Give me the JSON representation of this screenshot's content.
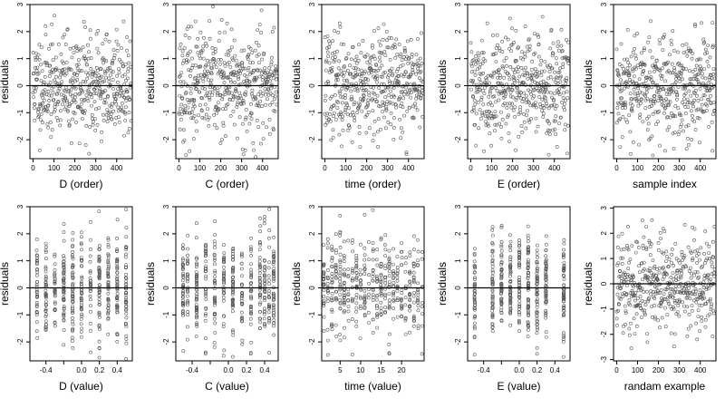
{
  "figure": {
    "rows": 2,
    "cols": 5,
    "point_color": "#555555",
    "zero_line_color": "#000000"
  },
  "chart_data": [
    {
      "type": "scatter",
      "xlabel": "D (order)",
      "ylabel": "residuals",
      "xlim": [
        -15,
        475
      ],
      "ylim": [
        -2.7,
        3.0
      ],
      "xticks": [
        0,
        100,
        200,
        300,
        400
      ],
      "xtick_labels": [
        "0",
        "100",
        "200",
        "300",
        "400"
      ],
      "yticks": [
        -2,
        -1,
        0,
        1,
        2,
        3
      ],
      "ytick_labels": [
        "-2",
        "-1",
        "0",
        "1",
        "2",
        "3"
      ],
      "hline": 0,
      "x_kind": "order",
      "seed": 11
    },
    {
      "type": "scatter",
      "xlabel": "C (order)",
      "ylabel": "residuals",
      "xlim": [
        -15,
        475
      ],
      "ylim": [
        -2.7,
        3.0
      ],
      "xticks": [
        0,
        100,
        200,
        300,
        400
      ],
      "xtick_labels": [
        "0",
        "100",
        "200",
        "300",
        "400"
      ],
      "yticks": [
        -2,
        -1,
        0,
        1,
        2,
        3
      ],
      "ytick_labels": [
        "-2",
        "-1",
        "0",
        "1",
        "2",
        "3"
      ],
      "hline": 0,
      "x_kind": "order",
      "seed": 23
    },
    {
      "type": "scatter",
      "xlabel": "time (order)",
      "ylabel": "residuals",
      "xlim": [
        -15,
        475
      ],
      "ylim": [
        -2.7,
        3.0
      ],
      "xticks": [
        0,
        100,
        200,
        300,
        400
      ],
      "xtick_labels": [
        "0",
        "100",
        "200",
        "300",
        "400"
      ],
      "yticks": [
        -2,
        -1,
        0,
        1,
        2,
        3
      ],
      "ytick_labels": [
        "-2",
        "-1",
        "0",
        "1",
        "2",
        "3"
      ],
      "hline": 0,
      "x_kind": "order",
      "seed": 37
    },
    {
      "type": "scatter",
      "xlabel": "E (order)",
      "ylabel": "residuals",
      "xlim": [
        -15,
        475
      ],
      "ylim": [
        -2.7,
        3.0
      ],
      "xticks": [
        0,
        100,
        200,
        300,
        400
      ],
      "xtick_labels": [
        "0",
        "100",
        "200",
        "300",
        "400"
      ],
      "yticks": [
        -2,
        -1,
        0,
        1,
        2,
        3
      ],
      "ytick_labels": [
        "-2",
        "-1",
        "0",
        "1",
        "2",
        "3"
      ],
      "hline": 0,
      "x_kind": "order",
      "seed": 41
    },
    {
      "type": "scatter",
      "xlabel": "sample index",
      "ylabel": "residuals",
      "xlim": [
        -15,
        475
      ],
      "ylim": [
        -2.7,
        3.0
      ],
      "xticks": [
        0,
        100,
        200,
        300,
        400
      ],
      "xtick_labels": [
        "0",
        "100",
        "200",
        "300",
        "400"
      ],
      "yticks": [
        -2,
        -1,
        0,
        1,
        2,
        3
      ],
      "ytick_labels": [
        "-2",
        "-1",
        "0",
        "1",
        "2",
        "3"
      ],
      "hline": 0,
      "x_kind": "order",
      "seed": 53
    },
    {
      "type": "scatter",
      "xlabel": "D (value)",
      "ylabel": "residuals",
      "xlim": [
        -0.58,
        0.57
      ],
      "ylim": [
        -2.7,
        3.0
      ],
      "xticks": [
        -0.4,
        -0.2,
        0.0,
        0.2,
        0.4
      ],
      "xtick_labels": [
        "-0.4",
        "",
        "0.0",
        "0.2",
        "0.4"
      ],
      "yticks": [
        -2,
        -1,
        0,
        1,
        2,
        3
      ],
      "ytick_labels": [
        "-2",
        "-1",
        "0",
        "1",
        "2",
        "3"
      ],
      "hline": 0,
      "x_kind": "discrete",
      "x_values": [
        -0.5,
        -0.4,
        -0.3,
        -0.2,
        -0.1,
        0.0,
        0.1,
        0.2,
        0.3,
        0.4,
        0.5
      ],
      "seed": 61
    },
    {
      "type": "scatter",
      "xlabel": "C (value)",
      "ylabel": "residuals",
      "xlim": [
        -0.58,
        0.55
      ],
      "ylim": [
        -2.7,
        3.0
      ],
      "xticks": [
        -0.4,
        -0.2,
        0.0,
        0.2,
        0.4
      ],
      "xtick_labels": [
        "-0.4",
        "",
        "0.0",
        "0.2",
        "0.4"
      ],
      "yticks": [
        -2,
        -1,
        0,
        1,
        2,
        3
      ],
      "ytick_labels": [
        "-2",
        "-1",
        "0",
        "1",
        "2",
        "3"
      ],
      "hline": 0,
      "x_kind": "discrete",
      "x_values": [
        -0.5,
        -0.45,
        -0.35,
        -0.25,
        -0.15,
        -0.05,
        0.05,
        0.15,
        0.25,
        0.35,
        0.4,
        0.45,
        0.5
      ],
      "seed": 73
    },
    {
      "type": "scatter",
      "xlabel": "time (value)",
      "ylabel": "residuals",
      "xlim": [
        0.5,
        25.5
      ],
      "ylim": [
        -2.7,
        3.0
      ],
      "xticks": [
        5,
        10,
        15,
        20
      ],
      "xtick_labels": [
        "5",
        "10",
        "15",
        "20"
      ],
      "yticks": [
        -2,
        -1,
        0,
        1,
        2,
        3
      ],
      "ytick_labels": [
        "-2",
        "-1",
        "0",
        "1",
        "2",
        "3"
      ],
      "hline": 0,
      "x_kind": "discrete",
      "x_values": [
        1,
        2,
        3,
        4,
        5,
        6,
        7,
        8,
        9,
        10,
        11,
        12,
        13,
        14,
        15,
        16,
        17,
        18,
        19,
        20,
        21,
        22,
        23,
        24,
        25
      ],
      "seed": 89
    },
    {
      "type": "scatter",
      "xlabel": "E (value)",
      "ylabel": "residuals",
      "xlim": [
        -0.58,
        0.57
      ],
      "ylim": [
        -2.7,
        3.0
      ],
      "xticks": [
        -0.4,
        -0.2,
        0.0,
        0.2,
        0.4
      ],
      "xtick_labels": [
        "-0.4",
        "",
        "0.0",
        "0.2",
        "0.4"
      ],
      "yticks": [
        -2,
        -1,
        0,
        1,
        2,
        3
      ],
      "ytick_labels": [
        "-2",
        "-1",
        "0",
        "1",
        "2",
        "3"
      ],
      "hline": 0,
      "x_kind": "discrete",
      "x_values": [
        -0.5,
        -0.3,
        -0.2,
        -0.1,
        0.0,
        0.1,
        0.2,
        0.3,
        0.5
      ],
      "seed": 97
    },
    {
      "type": "scatter",
      "xlabel": "randam example",
      "ylabel": "residuals",
      "xlim": [
        -15,
        475
      ],
      "ylim": [
        -3.05,
        3.05
      ],
      "xticks": [
        0,
        100,
        200,
        300,
        400
      ],
      "xtick_labels": [
        "0",
        "100",
        "200",
        "300",
        "400"
      ],
      "yticks": [
        -3,
        -2,
        -1,
        0,
        1,
        2,
        3
      ],
      "ytick_labels": [
        "-3",
        "-2",
        "-1",
        "0",
        "1",
        "2",
        "3"
      ],
      "hline": 0,
      "x_kind": "order",
      "seed": 103
    }
  ]
}
